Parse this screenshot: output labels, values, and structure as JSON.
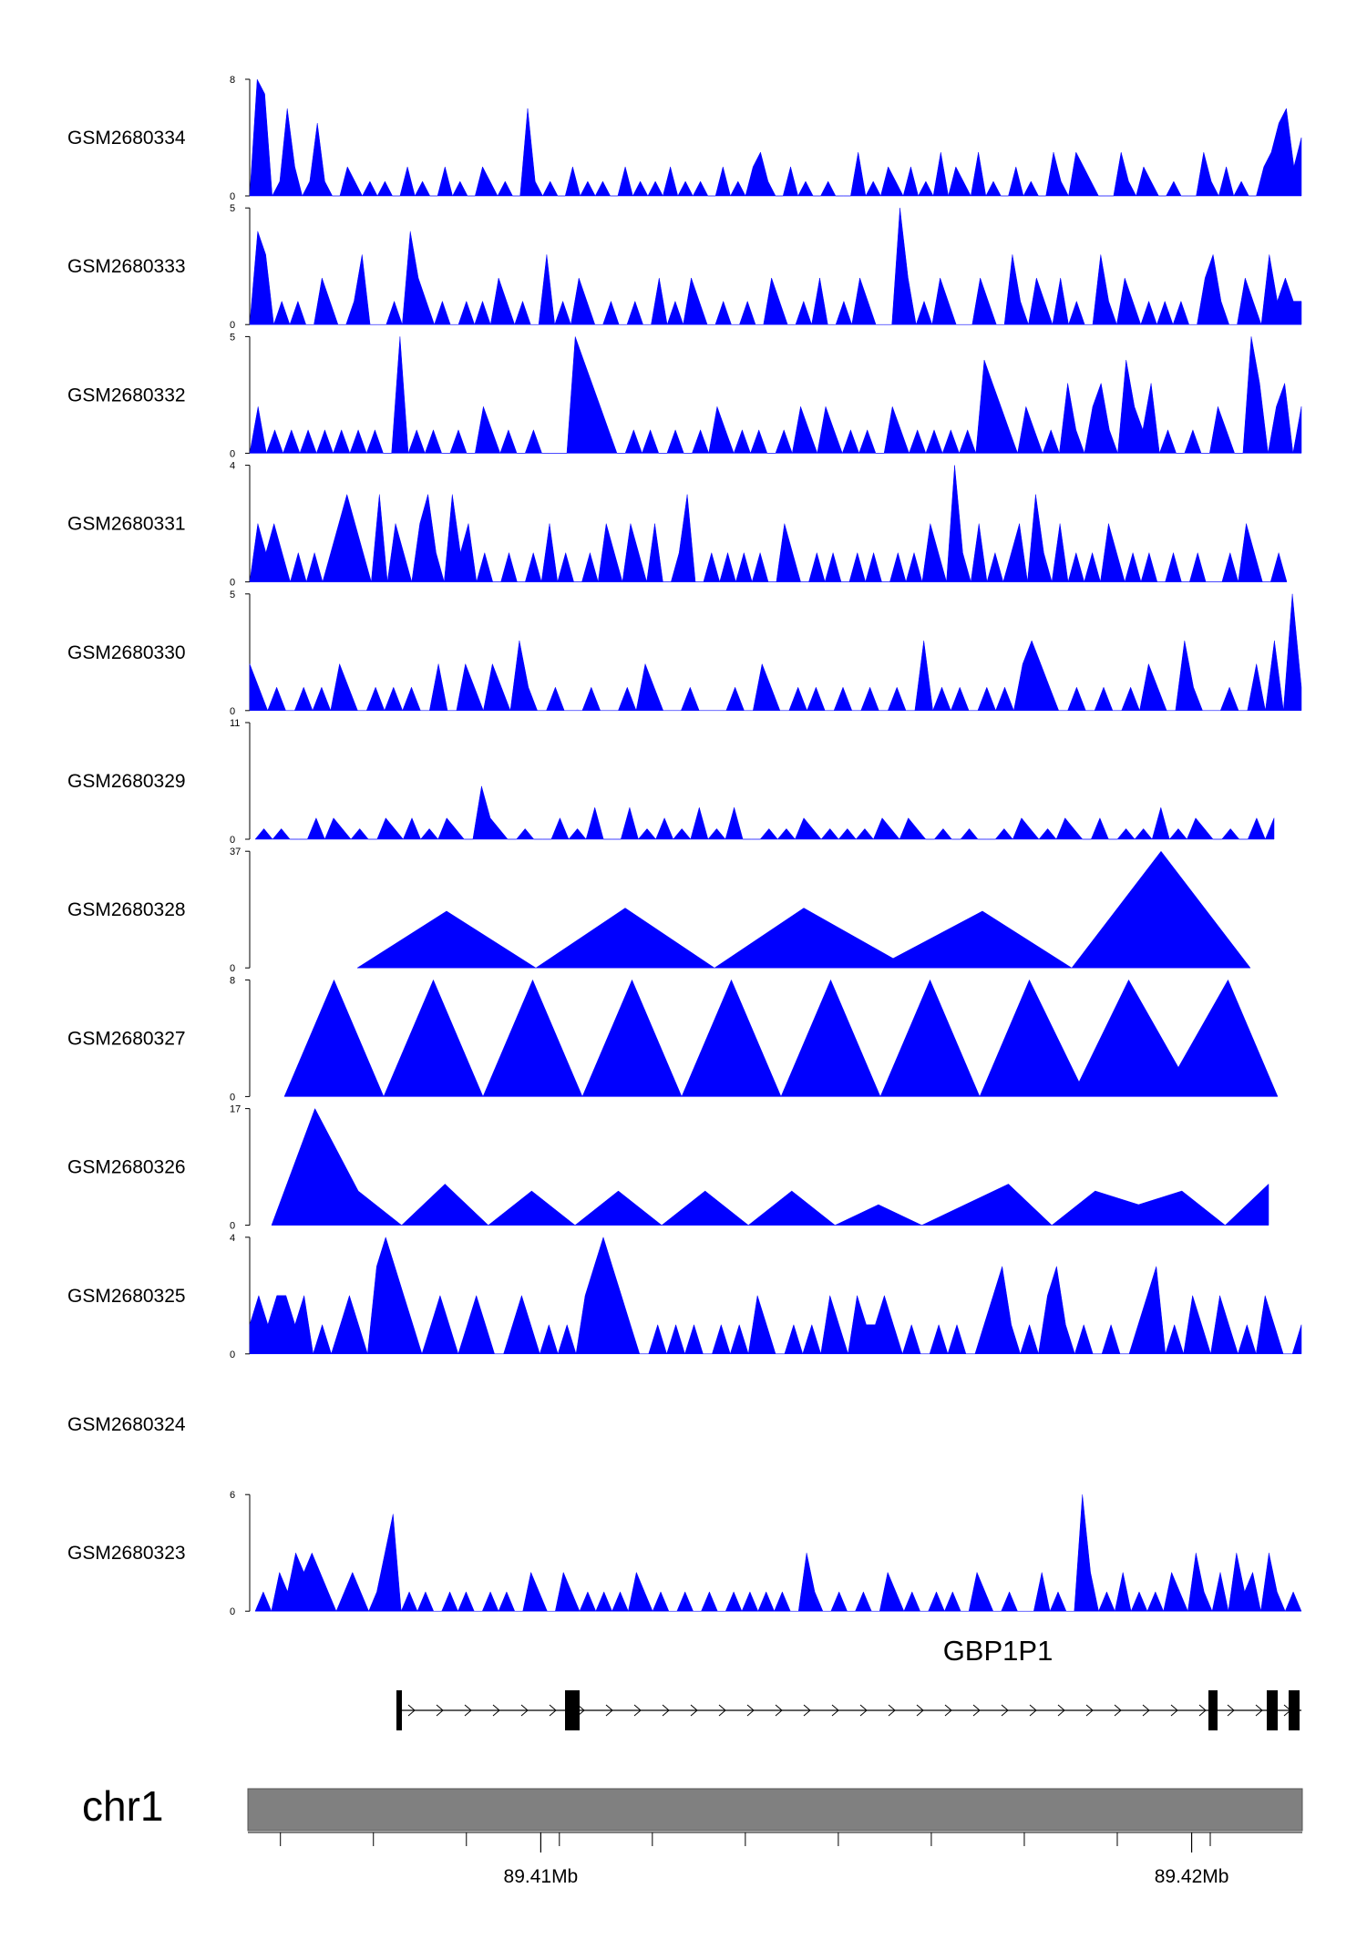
{
  "colors": {
    "coverage": "#0000ff",
    "ideogram": "#808080",
    "axis": "#000000",
    "exon": "#000000"
  },
  "chart_data": {
    "type": "area",
    "tracks": [
      {
        "name": "GSM2680334",
        "ymax": "8",
        "ymin": "0",
        "values": [
          0,
          8,
          7,
          0,
          1,
          6,
          2,
          0,
          1,
          5,
          1,
          0,
          0,
          2,
          1,
          0,
          1,
          0,
          1,
          0,
          0,
          2,
          0,
          1,
          0,
          0,
          2,
          0,
          1,
          0,
          0,
          2,
          1,
          0,
          1,
          0,
          0,
          6,
          1,
          0,
          1,
          0,
          0,
          2,
          0,
          1,
          0,
          1,
          0,
          0,
          2,
          0,
          1,
          0,
          1,
          0,
          2,
          0,
          1,
          0,
          1,
          0,
          0,
          2,
          0,
          1,
          0,
          2,
          3,
          1,
          0,
          0,
          2,
          0,
          1,
          0,
          0,
          1,
          0,
          0,
          0,
          3,
          0,
          1,
          0,
          2,
          1,
          0,
          2,
          0,
          1,
          0,
          3,
          0,
          2,
          1,
          0,
          3,
          0,
          1,
          0,
          0,
          2,
          0,
          1,
          0,
          0,
          3,
          1,
          0,
          3,
          2,
          1,
          0,
          0,
          0,
          3,
          1,
          0,
          2,
          1,
          0,
          0,
          1,
          0,
          0,
          0,
          3,
          1,
          0,
          2,
          0,
          1,
          0,
          0,
          2,
          3,
          5,
          6,
          2,
          4
        ]
      },
      {
        "name": "GSM2680333",
        "ymax": "5",
        "ymin": "0",
        "values": [
          0,
          4,
          3,
          0,
          1,
          0,
          1,
          0,
          0,
          2,
          1,
          0,
          0,
          1,
          3,
          0,
          0,
          0,
          1,
          0,
          4,
          2,
          1,
          0,
          1,
          0,
          0,
          1,
          0,
          1,
          0,
          2,
          1,
          0,
          1,
          0,
          0,
          3,
          0,
          1,
          0,
          2,
          1,
          0,
          0,
          1,
          0,
          0,
          1,
          0,
          0,
          2,
          0,
          1,
          0,
          2,
          1,
          0,
          0,
          1,
          0,
          0,
          1,
          0,
          0,
          2,
          1,
          0,
          0,
          1,
          0,
          2,
          0,
          0,
          1,
          0,
          2,
          1,
          0,
          0,
          0,
          5,
          2,
          0,
          1,
          0,
          2,
          1,
          0,
          0,
          0,
          2,
          1,
          0,
          0,
          3,
          1,
          0,
          2,
          1,
          0,
          2,
          0,
          1,
          0,
          0,
          3,
          1,
          0,
          2,
          1,
          0,
          1,
          0,
          1,
          0,
          1,
          0,
          0,
          2,
          3,
          1,
          0,
          0,
          2,
          1,
          0,
          3,
          1,
          2,
          1,
          1
        ]
      },
      {
        "name": "GSM2680332",
        "ymax": "5",
        "ymin": "0",
        "values": [
          0,
          2,
          0,
          1,
          0,
          1,
          0,
          1,
          0,
          1,
          0,
          1,
          0,
          1,
          0,
          1,
          0,
          0,
          5,
          0,
          1,
          0,
          1,
          0,
          0,
          1,
          0,
          0,
          2,
          1,
          0,
          1,
          0,
          0,
          1,
          0,
          0,
          0,
          0,
          5,
          4,
          3,
          2,
          1,
          0,
          0,
          1,
          0,
          1,
          0,
          0,
          1,
          0,
          0,
          1,
          0,
          2,
          1,
          0,
          1,
          0,
          1,
          0,
          0,
          1,
          0,
          2,
          1,
          0,
          2,
          1,
          0,
          1,
          0,
          1,
          0,
          0,
          2,
          1,
          0,
          1,
          0,
          1,
          0,
          1,
          0,
          1,
          0,
          4,
          3,
          2,
          1,
          0,
          2,
          1,
          0,
          1,
          0,
          3,
          1,
          0,
          2,
          3,
          1,
          0,
          4,
          2,
          1,
          3,
          0,
          1,
          0,
          0,
          1,
          0,
          0,
          2,
          1,
          0,
          0,
          5,
          3,
          0,
          2,
          3,
          0,
          2
        ]
      },
      {
        "name": "GSM2680331",
        "ymax": "4",
        "ymin": "0",
        "values": [
          0,
          2,
          1,
          2,
          1,
          0,
          1,
          0,
          1,
          0,
          1,
          2,
          3,
          2,
          1,
          0,
          3,
          0,
          2,
          1,
          0,
          2,
          3,
          1,
          0,
          3,
          1,
          2,
          0,
          1,
          0,
          0,
          1,
          0,
          0,
          1,
          0,
          2,
          0,
          1,
          0,
          0,
          1,
          0,
          2,
          1,
          0,
          2,
          1,
          0,
          2,
          0,
          0,
          1,
          3,
          0,
          0,
          1,
          0,
          1,
          0,
          1,
          0,
          1,
          0,
          0,
          2,
          1,
          0,
          0,
          1,
          0,
          1,
          0,
          0,
          1,
          0,
          1,
          0,
          0,
          1,
          0,
          1,
          0,
          2,
          1,
          0,
          4,
          1,
          0,
          2,
          0,
          1,
          0,
          1,
          2,
          0,
          3,
          1,
          0,
          2,
          0,
          1,
          0,
          1,
          0,
          2,
          1,
          0,
          1,
          0,
          1,
          0,
          0,
          1,
          0,
          0,
          1,
          0,
          0,
          0,
          1,
          0,
          2,
          1,
          0,
          0,
          1,
          0
        ]
      },
      {
        "name": "GSM2680330",
        "ymax": "5",
        "ymin": "0",
        "values": [
          2,
          1,
          0,
          1,
          0,
          0,
          1,
          0,
          1,
          0,
          2,
          1,
          0,
          0,
          1,
          0,
          1,
          0,
          1,
          0,
          0,
          2,
          0,
          0,
          2,
          1,
          0,
          2,
          1,
          0,
          3,
          1,
          0,
          0,
          1,
          0,
          0,
          0,
          1,
          0,
          0,
          0,
          1,
          0,
          2,
          1,
          0,
          0,
          0,
          1,
          0,
          0,
          0,
          0,
          1,
          0,
          0,
          2,
          1,
          0,
          0,
          1,
          0,
          1,
          0,
          0,
          1,
          0,
          0,
          1,
          0,
          0,
          1,
          0,
          0,
          3,
          0,
          1,
          0,
          1,
          0,
          0,
          1,
          0,
          1,
          0,
          2,
          3,
          2,
          1,
          0,
          0,
          1,
          0,
          0,
          1,
          0,
          0,
          1,
          0,
          2,
          1,
          0,
          0,
          3,
          1,
          0,
          0,
          0,
          1,
          0,
          0,
          2,
          0,
          3,
          0,
          5,
          1
        ]
      },
      {
        "name": "GSM2680329",
        "ymax": "11",
        "ymin": "0",
        "values": [
          0,
          1,
          0,
          1,
          0,
          0,
          0,
          2,
          0,
          2,
          1,
          0,
          1,
          0,
          0,
          2,
          1,
          0,
          2,
          0,
          1,
          0,
          2,
          1,
          0,
          0,
          5,
          2,
          1,
          0,
          0,
          1,
          0,
          0,
          0,
          2,
          0,
          1,
          0,
          3,
          0,
          0,
          0,
          3,
          0,
          1,
          0,
          2,
          0,
          1,
          0,
          3,
          0,
          1,
          0,
          3,
          0,
          0,
          0,
          1,
          0,
          1,
          0,
          2,
          1,
          0,
          1,
          0,
          1,
          0,
          1,
          0,
          2,
          1,
          0,
          2,
          1,
          0,
          0,
          1,
          0,
          0,
          1,
          0,
          0,
          0,
          1,
          0,
          2,
          1,
          0,
          1,
          0,
          2,
          1,
          0,
          0,
          2,
          0,
          0,
          1,
          0,
          1,
          0,
          3,
          0,
          1,
          0,
          2,
          1,
          0,
          0,
          1,
          0,
          0,
          2,
          0,
          2
        ]
      },
      {
        "name": "GSM2680328",
        "ymax": "37",
        "ymin": "0",
        "values": [
          0,
          18,
          0,
          19,
          0,
          19,
          3,
          18,
          0,
          37,
          0
        ]
      },
      {
        "name": "GSM2680327",
        "ymax": "8",
        "ymin": "0",
        "values": [
          0,
          8,
          0,
          8,
          0,
          8,
          0,
          8,
          0,
          8,
          0,
          8,
          0,
          8,
          0,
          8,
          1,
          8,
          2,
          8,
          0
        ]
      },
      {
        "name": "GSM2680326",
        "ymax": "17",
        "ymin": "0",
        "values": [
          0,
          17,
          5,
          0,
          6,
          0,
          5,
          0,
          5,
          0,
          5,
          0,
          5,
          0,
          3,
          0,
          3,
          6,
          0,
          5,
          3,
          5,
          0,
          6
        ]
      },
      {
        "name": "GSM2680325",
        "ymax": "4",
        "ymin": "0",
        "values": [
          1,
          2,
          1,
          2,
          2,
          1,
          2,
          0,
          1,
          0,
          1,
          2,
          1,
          0,
          3,
          4,
          3,
          2,
          1,
          0,
          1,
          2,
          1,
          0,
          1,
          2,
          1,
          0,
          0,
          1,
          2,
          1,
          0,
          1,
          0,
          1,
          0,
          2,
          3,
          4,
          3,
          2,
          1,
          0,
          0,
          1,
          0,
          1,
          0,
          1,
          0,
          0,
          1,
          0,
          1,
          0,
          2,
          1,
          0,
          0,
          1,
          0,
          1,
          0,
          2,
          1,
          0,
          2,
          1,
          1,
          2,
          1,
          0,
          1,
          0,
          0,
          1,
          0,
          1,
          0,
          0,
          1,
          2,
          3,
          1,
          0,
          1,
          0,
          2,
          3,
          1,
          0,
          1,
          0,
          0,
          1,
          0,
          0,
          1,
          2,
          3,
          0,
          1,
          0,
          2,
          1,
          0,
          2,
          1,
          0,
          1,
          0,
          2,
          1,
          0,
          0,
          1
        ]
      },
      {
        "name": "GSM2680324",
        "ymax": "",
        "ymin": "",
        "values": []
      },
      {
        "name": "GSM2680323",
        "ymax": "6",
        "ymin": "0",
        "values": [
          0,
          1,
          0,
          2,
          1,
          3,
          2,
          3,
          2,
          1,
          0,
          1,
          2,
          1,
          0,
          1,
          3,
          5,
          0,
          1,
          0,
          1,
          0,
          0,
          1,
          0,
          1,
          0,
          0,
          1,
          0,
          1,
          0,
          0,
          2,
          1,
          0,
          0,
          2,
          1,
          0,
          1,
          0,
          1,
          0,
          1,
          0,
          2,
          1,
          0,
          1,
          0,
          0,
          1,
          0,
          0,
          1,
          0,
          0,
          1,
          0,
          1,
          0,
          1,
          0,
          1,
          0,
          0,
          3,
          1,
          0,
          0,
          1,
          0,
          0,
          1,
          0,
          0,
          2,
          1,
          0,
          1,
          0,
          0,
          1,
          0,
          1,
          0,
          0,
          2,
          1,
          0,
          0,
          1,
          0,
          0,
          0,
          2,
          0,
          1,
          0,
          0,
          6,
          2,
          0,
          1,
          0,
          2,
          0,
          1,
          0,
          1,
          0,
          2,
          1,
          0,
          3,
          1,
          0,
          2,
          0,
          3,
          1,
          2,
          0,
          3,
          1,
          0,
          1,
          0
        ]
      }
    ],
    "gene": {
      "name": "GBP1P1",
      "strand": "+"
    },
    "chromosome": "chr1",
    "xaxis": {
      "unit": "Mb",
      "start": 89.4055,
      "end": 89.4217,
      "ticks": [
        "89.41Mb",
        "89.42Mb"
      ],
      "major_values": [
        89.41,
        89.42
      ]
    }
  }
}
